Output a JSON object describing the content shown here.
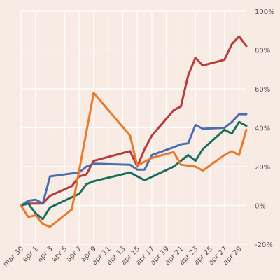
{
  "chart_data": {
    "type": "line",
    "y_unit": "%",
    "ylim": [
      -20,
      100
    ],
    "y_ticks": [
      {
        "value": 100,
        "label": "100%"
      },
      {
        "value": 80,
        "label": "80%"
      },
      {
        "value": 60,
        "label": "60%"
      },
      {
        "value": 40,
        "label": "40%"
      },
      {
        "value": 20,
        "label": "20%"
      },
      {
        "value": 0,
        "label": "0%"
      },
      {
        "value": -20,
        "label": "-20%"
      }
    ],
    "x_ticks": [
      {
        "date": "2020-03-30",
        "label": "mar 30"
      },
      {
        "date": "2020-04-01",
        "label": "apr 1"
      },
      {
        "date": "2020-04-03",
        "label": "apr 3"
      },
      {
        "date": "2020-04-05",
        "label": "apr 5"
      },
      {
        "date": "2020-04-07",
        "label": "apr 7"
      },
      {
        "date": "2020-04-09",
        "label": "apr 9"
      },
      {
        "date": "2020-04-11",
        "label": "apr 11"
      },
      {
        "date": "2020-04-13",
        "label": "apr 13"
      },
      {
        "date": "2020-04-15",
        "label": "apr 15"
      },
      {
        "date": "2020-04-17",
        "label": "apr 17"
      },
      {
        "date": "2020-04-19",
        "label": "apr 19"
      },
      {
        "date": "2020-04-21",
        "label": "apr 21"
      },
      {
        "date": "2020-04-23",
        "label": "apr 23"
      },
      {
        "date": "2020-04-25",
        "label": "apr 25"
      },
      {
        "date": "2020-04-27",
        "label": "apr 27"
      },
      {
        "date": "2020-04-29",
        "label": "apr 29"
      }
    ],
    "grid": true,
    "legend": "none",
    "series": [
      {
        "color": "#b83a3a",
        "points": [
          {
            "x": "2020-03-30",
            "y": 0
          },
          {
            "x": "2020-03-31",
            "y": 1
          },
          {
            "x": "2020-04-01",
            "y": 1
          },
          {
            "x": "2020-04-02",
            "y": 1
          },
          {
            "x": "2020-04-03",
            "y": 5
          },
          {
            "x": "2020-04-06",
            "y": 10
          },
          {
            "x": "2020-04-07",
            "y": 15
          },
          {
            "x": "2020-04-08",
            "y": 16
          },
          {
            "x": "2020-04-09",
            "y": 23
          },
          {
            "x": "2020-04-14",
            "y": 28
          },
          {
            "x": "2020-04-15",
            "y": 20
          },
          {
            "x": "2020-04-16",
            "y": 29
          },
          {
            "x": "2020-04-17",
            "y": 36
          },
          {
            "x": "2020-04-20",
            "y": 49
          },
          {
            "x": "2020-04-21",
            "y": 51
          },
          {
            "x": "2020-04-22",
            "y": 67
          },
          {
            "x": "2020-04-23",
            "y": 76
          },
          {
            "x": "2020-04-24",
            "y": 72
          },
          {
            "x": "2020-04-27",
            "y": 75
          },
          {
            "x": "2020-04-28",
            "y": 83
          },
          {
            "x": "2020-04-29",
            "y": 87
          },
          {
            "x": "2020-04-30",
            "y": 82
          }
        ]
      },
      {
        "color": "#4a6fb0",
        "points": [
          {
            "x": "2020-03-30",
            "y": 0
          },
          {
            "x": "2020-03-31",
            "y": 2.5
          },
          {
            "x": "2020-04-01",
            "y": 3
          },
          {
            "x": "2020-04-02",
            "y": 1
          },
          {
            "x": "2020-04-03",
            "y": 15
          },
          {
            "x": "2020-04-07",
            "y": 17
          },
          {
            "x": "2020-04-08",
            "y": 20
          },
          {
            "x": "2020-04-09",
            "y": 21.5
          },
          {
            "x": "2020-04-14",
            "y": 21
          },
          {
            "x": "2020-04-15",
            "y": 18.5
          },
          {
            "x": "2020-04-16",
            "y": 18.5
          },
          {
            "x": "2020-04-17",
            "y": 26
          },
          {
            "x": "2020-04-20",
            "y": 30
          },
          {
            "x": "2020-04-21",
            "y": 31.5
          },
          {
            "x": "2020-04-22",
            "y": 32
          },
          {
            "x": "2020-04-23",
            "y": 41.5
          },
          {
            "x": "2020-04-24",
            "y": 39.5
          },
          {
            "x": "2020-04-27",
            "y": 40
          },
          {
            "x": "2020-04-28",
            "y": 43
          },
          {
            "x": "2020-04-29",
            "y": 47
          },
          {
            "x": "2020-04-30",
            "y": 47
          }
        ]
      },
      {
        "color": "#1a6e5c",
        "points": [
          {
            "x": "2020-03-30",
            "y": 0
          },
          {
            "x": "2020-03-31",
            "y": 1
          },
          {
            "x": "2020-04-01",
            "y": -4
          },
          {
            "x": "2020-04-02",
            "y": -7
          },
          {
            "x": "2020-04-03",
            "y": -1
          },
          {
            "x": "2020-04-07",
            "y": 6
          },
          {
            "x": "2020-04-08",
            "y": 11
          },
          {
            "x": "2020-04-09",
            "y": 12.5
          },
          {
            "x": "2020-04-14",
            "y": 17
          },
          {
            "x": "2020-04-16",
            "y": 13
          },
          {
            "x": "2020-04-20",
            "y": 20
          },
          {
            "x": "2020-04-22",
            "y": 26
          },
          {
            "x": "2020-04-23",
            "y": 23
          },
          {
            "x": "2020-04-24",
            "y": 29
          },
          {
            "x": "2020-04-27",
            "y": 39
          },
          {
            "x": "2020-04-28",
            "y": 37
          },
          {
            "x": "2020-04-29",
            "y": 43
          },
          {
            "x": "2020-04-30",
            "y": 41
          }
        ]
      },
      {
        "color": "#e87a2e",
        "points": [
          {
            "x": "2020-03-30",
            "y": 0
          },
          {
            "x": "2020-03-31",
            "y": -6
          },
          {
            "x": "2020-04-01",
            "y": -5
          },
          {
            "x": "2020-04-02",
            "y": -9.5
          },
          {
            "x": "2020-04-03",
            "y": -11
          },
          {
            "x": "2020-04-06",
            "y": -2
          },
          {
            "x": "2020-04-09",
            "y": 58
          },
          {
            "x": "2020-04-14",
            "y": 36
          },
          {
            "x": "2020-04-15",
            "y": 20.5
          },
          {
            "x": "2020-04-17",
            "y": 24.5
          },
          {
            "x": "2020-04-20",
            "y": 27.5
          },
          {
            "x": "2020-04-21",
            "y": 21
          },
          {
            "x": "2020-04-23",
            "y": 20
          },
          {
            "x": "2020-04-24",
            "y": 18
          },
          {
            "x": "2020-04-27",
            "y": 26
          },
          {
            "x": "2020-04-28",
            "y": 28
          },
          {
            "x": "2020-04-29",
            "y": 26
          },
          {
            "x": "2020-04-30",
            "y": 39
          }
        ]
      }
    ]
  }
}
